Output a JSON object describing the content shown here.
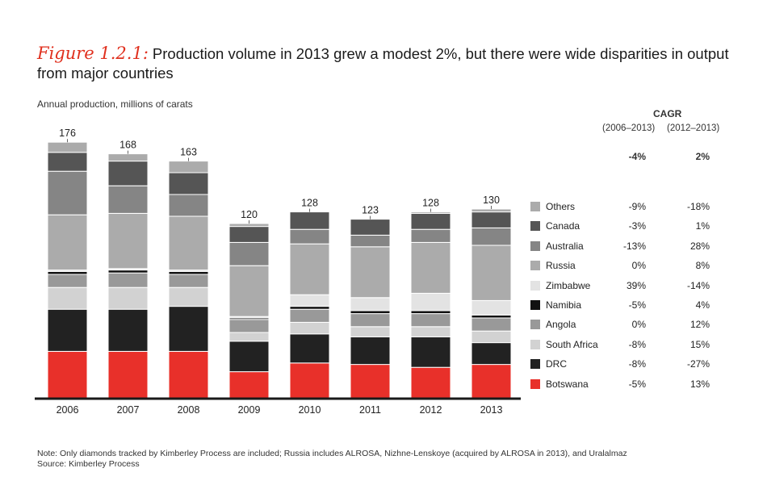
{
  "figure_label": "Figure 1.2.1:",
  "figure_title": "Production volume in 2013 grew a modest 2%, but there were wide disparities in output from major countries",
  "note": "Note:  Only diamonds tracked by Kimberley Process are included; Russia includes ALROSA, Nizhne-Lenskoye (acquired by ALROSA in 2013), and Uralalmaz",
  "source": "Source:  Kimberley Process",
  "colors": {
    "Botswana": "#e8302a",
    "DRC": "#222222",
    "South Africa": "#d2d2d2",
    "Angola": "#999999",
    "Namibia": "#111111",
    "Zimbabwe": "#e3e3e3",
    "Russia": "#ababab",
    "Australia": "#858585",
    "Canada": "#555555",
    "Others": "#ababab"
  },
  "chart_data": {
    "type": "bar",
    "stacked": true,
    "ylabel": "Annual production, millions of carats",
    "categories": [
      "2006",
      "2007",
      "2008",
      "2009",
      "2010",
      "2011",
      "2012",
      "2013"
    ],
    "totals": [
      176,
      168,
      163,
      120,
      128,
      123,
      128,
      130
    ],
    "ylim": [
      0,
      185
    ],
    "series": [
      {
        "name": "Botswana",
        "values": [
          32,
          32,
          32,
          18,
          24,
          23,
          21,
          23
        ]
      },
      {
        "name": "DRC",
        "values": [
          29,
          29,
          31,
          21,
          20,
          19,
          21,
          15
        ]
      },
      {
        "name": "South Africa",
        "values": [
          15,
          15,
          13,
          6,
          8,
          7,
          7,
          8
        ]
      },
      {
        "name": "Angola",
        "values": [
          9,
          10,
          9,
          9,
          9,
          9,
          9,
          9
        ]
      },
      {
        "name": "Namibia",
        "values": [
          2,
          2,
          2,
          1,
          2,
          2,
          2,
          2
        ]
      },
      {
        "name": "Zimbabwe",
        "values": [
          1,
          1,
          1,
          1,
          8,
          9,
          12,
          10
        ]
      },
      {
        "name": "Russia",
        "values": [
          38,
          38,
          37,
          35,
          35,
          35,
          35,
          38
        ]
      },
      {
        "name": "Australia",
        "values": [
          30,
          19,
          15,
          16,
          10,
          8,
          9,
          12
        ]
      },
      {
        "name": "Canada",
        "values": [
          13,
          17,
          15,
          11,
          12,
          11,
          11,
          11
        ]
      },
      {
        "name": "Others",
        "values": [
          7,
          5,
          8,
          2,
          0,
          0,
          1,
          2
        ]
      }
    ]
  },
  "cagr": {
    "title": "CAGR",
    "col1_header": "(2006–2013)",
    "col2_header": "(2012–2013)",
    "total_col1": "-4%",
    "total_col2": "2%",
    "rows": [
      {
        "name": "Others",
        "col1": "-9%",
        "col2": "-18%"
      },
      {
        "name": "Canada",
        "col1": "-3%",
        "col2": "1%"
      },
      {
        "name": "Australia",
        "col1": "-13%",
        "col2": "28%"
      },
      {
        "name": "Russia",
        "col1": "0%",
        "col2": "8%"
      },
      {
        "name": "Zimbabwe",
        "col1": "39%",
        "col2": "-14%"
      },
      {
        "name": "Namibia",
        "col1": "-5%",
        "col2": "4%"
      },
      {
        "name": "Angola",
        "col1": "0%",
        "col2": "12%"
      },
      {
        "name": "South Africa",
        "col1": "-8%",
        "col2": "15%"
      },
      {
        "name": "DRC",
        "col1": "-8%",
        "col2": "-27%"
      },
      {
        "name": "Botswana",
        "col1": "-5%",
        "col2": "13%"
      }
    ]
  }
}
